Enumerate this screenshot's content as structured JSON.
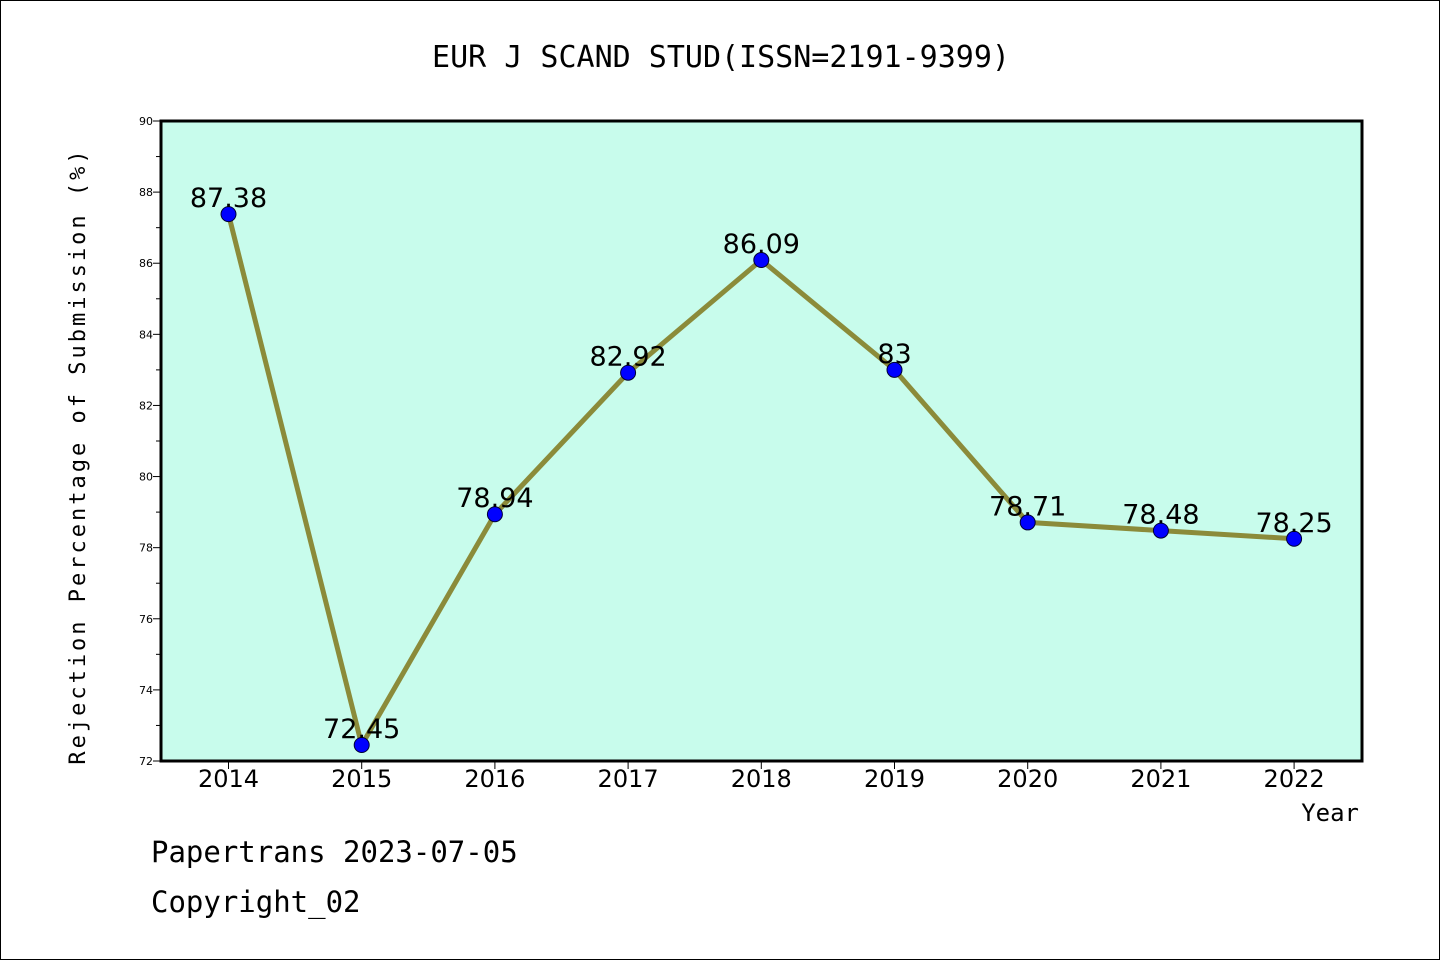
{
  "colors": {
    "plot_background": "#c8fcec",
    "line": "#8b8b3a",
    "marker": "#0000ff",
    "axis": "#000000"
  },
  "chart_data": {
    "type": "line",
    "title": "EUR J SCAND STUD(ISSN=2191-9399)",
    "xlabel": "Year",
    "ylabel": "Rejection Percentage of Submission (%)",
    "categories": [
      "2014",
      "2015",
      "2016",
      "2017",
      "2018",
      "2019",
      "2020",
      "2021",
      "2022"
    ],
    "y_ticks": [
      "72",
      "74",
      "76",
      "78",
      "80",
      "82",
      "84",
      "86",
      "88",
      "90"
    ],
    "ylim": [
      72,
      90
    ],
    "grid": false,
    "series": [
      {
        "values": [
          87.38,
          72.45,
          78.94,
          82.92,
          86.09,
          83,
          78.71,
          78.48,
          78.25
        ],
        "labels": [
          "87.38",
          "72.45",
          "78.94",
          "82.92",
          "86.09",
          "83",
          "78.71",
          "78.48",
          "78.25"
        ]
      }
    ]
  },
  "footer": {
    "line1": "Papertrans 2023-07-05",
    "line2": "Copyright_02"
  }
}
